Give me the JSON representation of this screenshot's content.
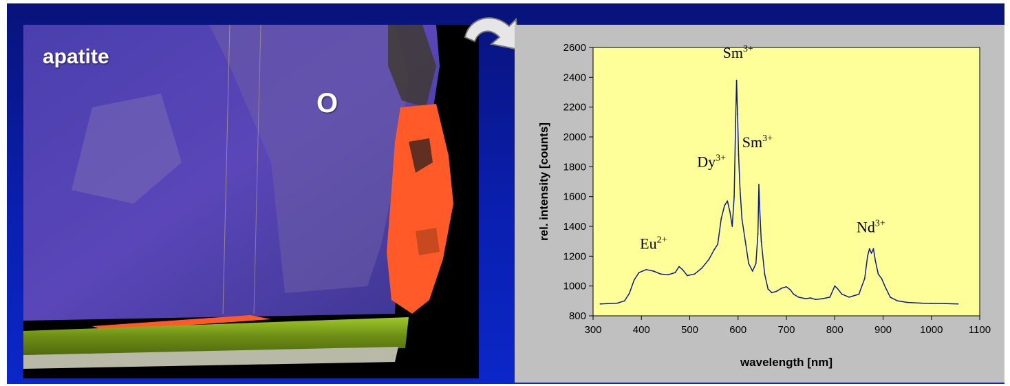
{
  "photo": {
    "labels": {
      "mineral": "apatite",
      "marker": "O"
    }
  },
  "colors": {
    "slide_background": "#0a1fb0",
    "plot_background": "#ffff99",
    "panel_background": "#c0c0c0",
    "line": "#0a1a8c",
    "luminescence_red": "#ff5a28",
    "luminescence_yellow": "#b8d428"
  },
  "chart_data": {
    "type": "line",
    "title": "",
    "xlabel": "wavelength [nm]",
    "ylabel": "rel. intensity [counts]",
    "xlim": [
      300,
      1100
    ],
    "ylim": [
      800,
      2600
    ],
    "x_ticks": [
      300,
      400,
      500,
      600,
      700,
      800,
      900,
      1000,
      1100
    ],
    "y_ticks": [
      800,
      1000,
      1200,
      1400,
      1600,
      1800,
      2000,
      2200,
      2400,
      2600
    ],
    "grid": false,
    "legend": "none",
    "series": [
      {
        "x": [
          315,
          330,
          350,
          365,
          375,
          385,
          395,
          410,
          425,
          440,
          455,
          470,
          478,
          485,
          495,
          510,
          525,
          540,
          550,
          558,
          565,
          572,
          578,
          583,
          588,
          592,
          595,
          597,
          599,
          601,
          604,
          608,
          615,
          622,
          630,
          637,
          641,
          643,
          645,
          648,
          655,
          662,
          670,
          680,
          690,
          700,
          708,
          715,
          725,
          740,
          750,
          760,
          775,
          790,
          800,
          805,
          815,
          830,
          850,
          862,
          868,
          872,
          876,
          880,
          884,
          890,
          897,
          905,
          915,
          930,
          950,
          980,
          1000,
          1030,
          1055
        ],
        "y": [
          880,
          882,
          885,
          900,
          950,
          1040,
          1090,
          1110,
          1100,
          1080,
          1075,
          1090,
          1130,
          1110,
          1070,
          1080,
          1120,
          1180,
          1240,
          1280,
          1450,
          1540,
          1570,
          1500,
          1400,
          1600,
          2100,
          2380,
          2150,
          1880,
          1650,
          1450,
          1300,
          1150,
          1100,
          1150,
          1350,
          1680,
          1500,
          1300,
          1080,
          980,
          955,
          965,
          985,
          995,
          975,
          945,
          925,
          915,
          920,
          910,
          915,
          925,
          1000,
          985,
          945,
          925,
          945,
          1050,
          1200,
          1250,
          1220,
          1250,
          1170,
          1080,
          1050,
          990,
          925,
          900,
          890,
          885,
          883,
          882,
          880
        ]
      }
    ],
    "annotations": [
      {
        "base": "Eu",
        "sup": "2+",
        "x": 425,
        "y": 1250
      },
      {
        "base": "Dy",
        "sup": "3+",
        "x": 545,
        "y": 1800
      },
      {
        "base": "Sm",
        "sup": "3+",
        "x": 600,
        "y": 2530
      },
      {
        "base": "Sm",
        "sup": "3+",
        "x": 640,
        "y": 1930
      },
      {
        "base": "Nd",
        "sup": "3+",
        "x": 875,
        "y": 1360
      }
    ]
  }
}
